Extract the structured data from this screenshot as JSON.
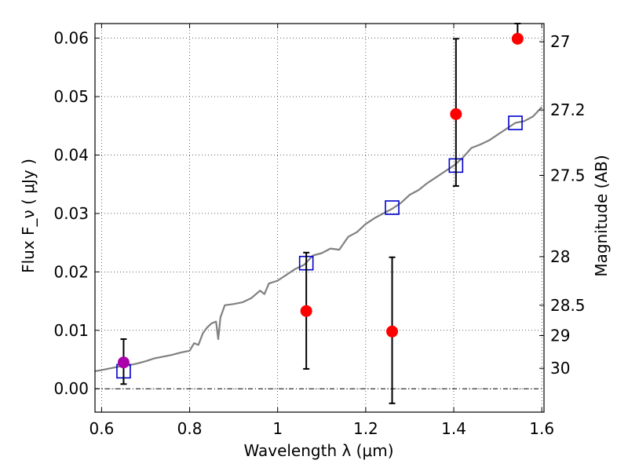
{
  "chart_data": {
    "type": "scatter",
    "xlabel": "Wavelength  λ (μm)",
    "ylabel": "Flux  F_ν  ( μJy )",
    "ylabel_right": "Magnitude (AB)",
    "xlim": [
      0.585,
      1.605
    ],
    "ylim": [
      -0.004,
      0.0625
    ],
    "grid": true,
    "x_ticks": [
      0.6,
      0.8,
      1.0,
      1.2,
      1.4,
      1.6
    ],
    "x_tick_labels": [
      "0.6",
      "0.8",
      "1",
      "1.2",
      "1.4",
      "1.6"
    ],
    "y_ticks": [
      0.0,
      0.01,
      0.02,
      0.03,
      0.04,
      0.05,
      0.06
    ],
    "y_tick_labels": [
      "0.00",
      "0.01",
      "0.02",
      "0.03",
      "0.04",
      "0.05",
      "0.06"
    ],
    "right_ticks": [
      {
        "flux": 0.0594,
        "label": "27"
      },
      {
        "flux": 0.0477,
        "label": "27.2"
      },
      {
        "flux": 0.0365,
        "label": "27.5"
      },
      {
        "flux": 0.0226,
        "label": "28"
      },
      {
        "flux": 0.0143,
        "label": "28.5"
      },
      {
        "flux": 0.0091,
        "label": "29"
      },
      {
        "flux": 0.0035,
        "label": "30"
      }
    ],
    "series": [
      {
        "kind": "model_spectrum",
        "color": "#808080",
        "x": [
          0.585,
          0.6,
          0.62,
          0.64,
          0.66,
          0.68,
          0.7,
          0.72,
          0.74,
          0.76,
          0.78,
          0.8,
          0.81,
          0.82,
          0.83,
          0.84,
          0.85,
          0.86,
          0.865,
          0.87,
          0.88,
          0.9,
          0.92,
          0.94,
          0.96,
          0.97,
          0.98,
          1.0,
          1.02,
          1.04,
          1.06,
          1.08,
          1.1,
          1.12,
          1.14,
          1.16,
          1.18,
          1.2,
          1.22,
          1.24,
          1.26,
          1.28,
          1.3,
          1.32,
          1.34,
          1.36,
          1.38,
          1.4,
          1.42,
          1.44,
          1.46,
          1.48,
          1.5,
          1.52,
          1.54,
          1.56,
          1.58,
          1.6
        ],
        "y": [
          0.003,
          0.0032,
          0.0035,
          0.0038,
          0.004,
          0.0043,
          0.0047,
          0.0052,
          0.0055,
          0.0058,
          0.0062,
          0.0065,
          0.0078,
          0.0075,
          0.0095,
          0.0105,
          0.0112,
          0.0115,
          0.0085,
          0.0122,
          0.0143,
          0.0145,
          0.0148,
          0.0155,
          0.0168,
          0.0162,
          0.018,
          0.0185,
          0.0195,
          0.0205,
          0.0212,
          0.0228,
          0.0232,
          0.024,
          0.0238,
          0.026,
          0.0268,
          0.0282,
          0.0292,
          0.03,
          0.0308,
          0.0318,
          0.0332,
          0.034,
          0.0352,
          0.0362,
          0.0372,
          0.0382,
          0.0395,
          0.0412,
          0.0418,
          0.0425,
          0.0435,
          0.0445,
          0.0455,
          0.0458,
          0.0466,
          0.0482
        ]
      },
      {
        "kind": "model_points",
        "marker": "open-square",
        "color": "#0000cc",
        "x": [
          0.65,
          1.065,
          1.26,
          1.405,
          1.54
        ],
        "y": [
          0.003,
          0.0215,
          0.031,
          0.0382,
          0.0455
        ]
      },
      {
        "kind": "observed",
        "marker": "filled-circle",
        "color": "#ff0000",
        "x": [
          1.065,
          1.26,
          1.405,
          1.545
        ],
        "y": [
          0.0133,
          0.0098,
          0.047,
          0.0599
        ],
        "err_low": [
          0.0034,
          -0.0025,
          0.0347,
          0.0599
        ],
        "err_high": [
          0.0233,
          0.0225,
          0.0599,
          0.0625
        ]
      },
      {
        "kind": "observed",
        "marker": "filled-circle",
        "color": "#aa00aa",
        "x": [
          0.65
        ],
        "y": [
          0.0045
        ],
        "err_low": [
          0.0008
        ],
        "err_high": [
          0.0085
        ]
      }
    ]
  }
}
